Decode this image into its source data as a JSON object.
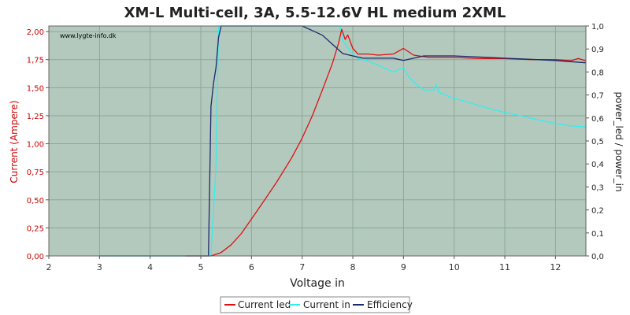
{
  "colors": {
    "plot_bg": "#b4c9bd",
    "grid": "#8aa898",
    "current_led": "#dd1111",
    "current_in": "#33eeee",
    "efficiency": "#1a2a6e",
    "left_axis_text": "#cc0000"
  },
  "chart_data": {
    "type": "line",
    "title": "XM-L Multi-cell, 3A, 5.5-12.6V HL medium 2XML",
    "xlabel": "Voltage in",
    "ylabel_left": "Current (Ampere)",
    "ylabel_right": "power_led / power_in",
    "watermark": "www.lygte-info.dk",
    "xlim": [
      2,
      12.6
    ],
    "ylim_left": [
      0,
      2.05
    ],
    "ylim_right": [
      0,
      1.0
    ],
    "x_ticks": [
      "2",
      "3",
      "4",
      "5",
      "6",
      "7",
      "8",
      "9",
      "10",
      "11",
      "12"
    ],
    "y_left_ticks": [
      "0,00",
      "0,25",
      "0,50",
      "0,75",
      "1,00",
      "1,25",
      "1,50",
      "1,75",
      "2,00"
    ],
    "y_right_ticks": [
      "0,0",
      "0,1",
      "0,2",
      "0,3",
      "0,4",
      "0,5",
      "0,6",
      "0,7",
      "0,8",
      "0,9",
      "1,0"
    ],
    "grid": true,
    "legend_position": "bottom",
    "legend": [
      "Current led",
      "Current in",
      "Efficiency"
    ],
    "series": [
      {
        "name": "Current led",
        "axis": "left",
        "color": "#dd1111",
        "points": [
          [
            4.7,
            0.0
          ],
          [
            5.2,
            0.0
          ],
          [
            5.4,
            0.03
          ],
          [
            5.6,
            0.1
          ],
          [
            5.8,
            0.2
          ],
          [
            6.0,
            0.33
          ],
          [
            6.2,
            0.46
          ],
          [
            6.5,
            0.66
          ],
          [
            6.8,
            0.88
          ],
          [
            7.0,
            1.05
          ],
          [
            7.2,
            1.25
          ],
          [
            7.4,
            1.48
          ],
          [
            7.6,
            1.72
          ],
          [
            7.72,
            1.9
          ],
          [
            7.78,
            2.02
          ],
          [
            7.85,
            1.93
          ],
          [
            7.9,
            1.97
          ],
          [
            8.0,
            1.85
          ],
          [
            8.1,
            1.8
          ],
          [
            8.3,
            1.8
          ],
          [
            8.5,
            1.79
          ],
          [
            8.8,
            1.8
          ],
          [
            9.0,
            1.85
          ],
          [
            9.2,
            1.79
          ],
          [
            9.5,
            1.77
          ],
          [
            9.7,
            1.77
          ],
          [
            10.0,
            1.77
          ],
          [
            10.5,
            1.76
          ],
          [
            11.0,
            1.76
          ],
          [
            11.5,
            1.75
          ],
          [
            12.0,
            1.75
          ],
          [
            12.3,
            1.74
          ],
          [
            12.45,
            1.76
          ],
          [
            12.6,
            1.74
          ]
        ]
      },
      {
        "name": "Current in",
        "axis": "left",
        "color": "#33eeee",
        "points": [
          [
            3.0,
            0.0
          ],
          [
            5.2,
            0.0
          ],
          [
            5.3,
            0.8
          ],
          [
            5.35,
            2.05
          ],
          [
            7.75,
            2.05
          ],
          [
            7.8,
            1.92
          ],
          [
            8.0,
            1.8
          ],
          [
            8.1,
            1.76
          ],
          [
            8.3,
            1.74
          ],
          [
            8.5,
            1.7
          ],
          [
            8.8,
            1.64
          ],
          [
            9.0,
            1.68
          ],
          [
            9.1,
            1.6
          ],
          [
            9.2,
            1.55
          ],
          [
            9.4,
            1.48
          ],
          [
            9.6,
            1.48
          ],
          [
            9.65,
            1.53
          ],
          [
            9.7,
            1.46
          ],
          [
            9.9,
            1.42
          ],
          [
            10.2,
            1.38
          ],
          [
            10.5,
            1.34
          ],
          [
            10.8,
            1.3
          ],
          [
            11.2,
            1.26
          ],
          [
            11.6,
            1.22
          ],
          [
            12.0,
            1.18
          ],
          [
            12.3,
            1.16
          ],
          [
            12.6,
            1.15
          ]
        ]
      },
      {
        "name": "Efficiency",
        "axis": "right",
        "color": "#1a2a6e",
        "points": [
          [
            3.0,
            0.0
          ],
          [
            5.15,
            0.0
          ],
          [
            5.2,
            0.65
          ],
          [
            5.25,
            0.75
          ],
          [
            5.3,
            0.82
          ],
          [
            5.35,
            0.95
          ],
          [
            5.4,
            1.0
          ],
          [
            7.0,
            1.0
          ],
          [
            7.2,
            0.98
          ],
          [
            7.4,
            0.96
          ],
          [
            7.6,
            0.92
          ],
          [
            7.8,
            0.88
          ],
          [
            8.0,
            0.87
          ],
          [
            8.2,
            0.86
          ],
          [
            8.4,
            0.86
          ],
          [
            8.6,
            0.86
          ],
          [
            8.8,
            0.86
          ],
          [
            9.0,
            0.85
          ],
          [
            9.2,
            0.86
          ],
          [
            9.4,
            0.87
          ],
          [
            9.6,
            0.87
          ],
          [
            9.8,
            0.87
          ],
          [
            10.0,
            0.87
          ],
          [
            10.5,
            0.865
          ],
          [
            11.0,
            0.86
          ],
          [
            11.5,
            0.855
          ],
          [
            12.0,
            0.85
          ],
          [
            12.3,
            0.845
          ],
          [
            12.6,
            0.84
          ]
        ]
      }
    ]
  }
}
